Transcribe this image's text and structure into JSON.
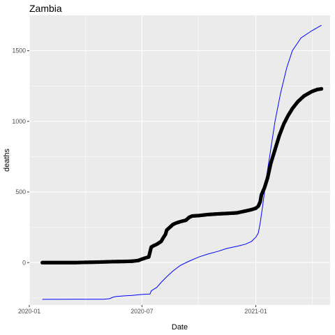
{
  "chart_data": {
    "type": "scatter",
    "title": "Zambia",
    "xlabel": "Date",
    "ylabel": "deaths",
    "x_axis_type": "date",
    "xlim": [
      "2020-01-01",
      "2021-05-01"
    ],
    "ylim": [
      -300,
      1750
    ],
    "x_ticks": [
      {
        "value": "2020-01-01",
        "label": "2020-01"
      },
      {
        "value": "2020-07-01",
        "label": "2020-07"
      },
      {
        "value": "2021-01-01",
        "label": "2021-01"
      }
    ],
    "y_ticks": [
      {
        "value": 0,
        "label": "0"
      },
      {
        "value": 500,
        "label": "500"
      },
      {
        "value": 1000,
        "label": "1000"
      },
      {
        "value": 1500,
        "label": "1500"
      }
    ],
    "grid": true,
    "colors": {
      "panel_background": "#ebebeb",
      "grid": "#ffffff",
      "points": "#000000",
      "line": "#0000ff"
    },
    "series": [
      {
        "kind": "points",
        "data": [
          [
            "2020-01-22",
            0
          ],
          [
            "2020-02-15",
            0
          ],
          [
            "2020-03-15",
            0
          ],
          [
            "2020-04-01",
            2
          ],
          [
            "2020-04-15",
            3
          ],
          [
            "2020-05-01",
            5
          ],
          [
            "2020-05-15",
            7
          ],
          [
            "2020-06-01",
            8
          ],
          [
            "2020-06-15",
            10
          ],
          [
            "2020-06-25",
            15
          ],
          [
            "2020-07-01",
            25
          ],
          [
            "2020-07-08",
            35
          ],
          [
            "2020-07-12",
            40
          ],
          [
            "2020-07-16",
            110
          ],
          [
            "2020-07-20",
            120
          ],
          [
            "2020-07-25",
            130
          ],
          [
            "2020-08-01",
            150
          ],
          [
            "2020-08-05",
            180
          ],
          [
            "2020-08-08",
            200
          ],
          [
            "2020-08-10",
            230
          ],
          [
            "2020-08-15",
            250
          ],
          [
            "2020-08-20",
            270
          ],
          [
            "2020-08-25",
            280
          ],
          [
            "2020-09-01",
            290
          ],
          [
            "2020-09-10",
            300
          ],
          [
            "2020-09-15",
            320
          ],
          [
            "2020-09-20",
            330
          ],
          [
            "2020-10-01",
            333
          ],
          [
            "2020-10-15",
            340
          ],
          [
            "2020-11-01",
            345
          ],
          [
            "2020-11-15",
            348
          ],
          [
            "2020-12-01",
            352
          ],
          [
            "2020-12-15",
            365
          ],
          [
            "2020-12-25",
            375
          ],
          [
            "2021-01-01",
            385
          ],
          [
            "2021-01-05",
            400
          ],
          [
            "2021-01-08",
            430
          ],
          [
            "2021-01-10",
            480
          ],
          [
            "2021-01-15",
            530
          ],
          [
            "2021-01-20",
            600
          ],
          [
            "2021-01-25",
            700
          ],
          [
            "2021-02-01",
            800
          ],
          [
            "2021-02-08",
            900
          ],
          [
            "2021-02-15",
            980
          ],
          [
            "2021-02-22",
            1040
          ],
          [
            "2021-03-01",
            1090
          ],
          [
            "2021-03-10",
            1140
          ],
          [
            "2021-03-20",
            1180
          ],
          [
            "2021-04-01",
            1210
          ],
          [
            "2021-04-10",
            1225
          ],
          [
            "2021-04-17",
            1230
          ]
        ]
      },
      {
        "kind": "line",
        "data": [
          [
            "2020-01-22",
            -260
          ],
          [
            "2020-05-01",
            -259
          ],
          [
            "2020-05-10",
            -255
          ],
          [
            "2020-05-15",
            -245
          ],
          [
            "2020-05-20",
            -240
          ],
          [
            "2020-06-01",
            -236
          ],
          [
            "2020-06-15",
            -232
          ],
          [
            "2020-07-01",
            -225
          ],
          [
            "2020-07-14",
            -222
          ],
          [
            "2020-07-16",
            -200
          ],
          [
            "2020-07-25",
            -175
          ],
          [
            "2020-08-01",
            -140
          ],
          [
            "2020-08-10",
            -100
          ],
          [
            "2020-08-20",
            -60
          ],
          [
            "2020-09-01",
            -20
          ],
          [
            "2020-09-15",
            10
          ],
          [
            "2020-10-01",
            40
          ],
          [
            "2020-10-15",
            60
          ],
          [
            "2020-11-01",
            80
          ],
          [
            "2020-11-15",
            100
          ],
          [
            "2020-12-01",
            115
          ],
          [
            "2020-12-15",
            130
          ],
          [
            "2020-12-25",
            150
          ],
          [
            "2021-01-01",
            180
          ],
          [
            "2021-01-05",
            210
          ],
          [
            "2021-01-08",
            280
          ],
          [
            "2021-01-12",
            400
          ],
          [
            "2021-01-18",
            600
          ],
          [
            "2021-01-25",
            800
          ],
          [
            "2021-02-01",
            1000
          ],
          [
            "2021-02-10",
            1200
          ],
          [
            "2021-02-20",
            1380
          ],
          [
            "2021-03-01",
            1500
          ],
          [
            "2021-03-15",
            1590
          ],
          [
            "2021-04-01",
            1640
          ],
          [
            "2021-04-17",
            1680
          ]
        ]
      }
    ]
  }
}
